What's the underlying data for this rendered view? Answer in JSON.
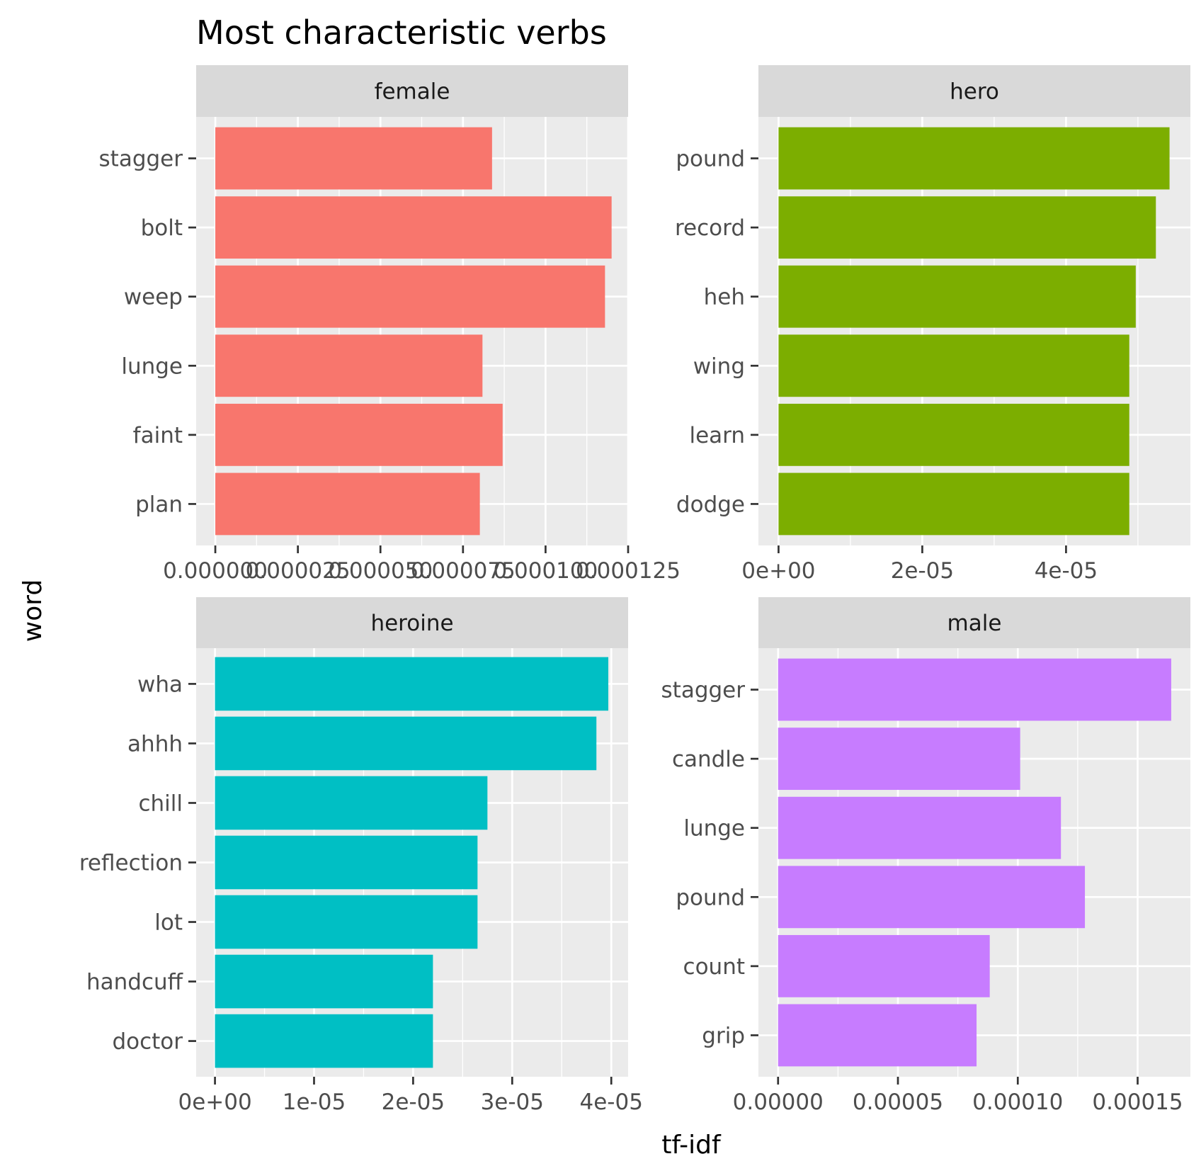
{
  "chart_data": {
    "type": "bar",
    "orientation": "horizontal",
    "facet_layout": "2x2",
    "title": "Most characteristic verbs",
    "xlabel": "tf-idf",
    "ylabel": "word",
    "grid": true,
    "legend": "none",
    "panels": [
      {
        "strip": "female",
        "color": "#F8766D",
        "categories": [
          "stagger",
          "bolt",
          "weep",
          "lunge",
          "faint",
          "plan"
        ],
        "values": [
          8.38e-05,
          0.00012,
          0.000118,
          8.09e-05,
          8.7e-05,
          8.01e-05
        ],
        "xlim": [
          -5.8e-06,
          0.000125
        ],
        "ticks": [
          0,
          2.5e-05,
          5e-05,
          7.5e-05,
          0.0001,
          0.000125
        ],
        "tick_labels": [
          "0.000000",
          "0.000025",
          "0.000050",
          "0.000075",
          "0.000100",
          "0.000125"
        ]
      },
      {
        "strip": "hero",
        "color": "#7CAE00",
        "categories": [
          "pound",
          "record",
          "heh",
          "wing",
          "learn",
          "dodge"
        ],
        "values": [
          5.44e-05,
          5.25e-05,
          4.97e-05,
          4.88e-05,
          4.88e-05,
          4.88e-05
        ],
        "xlim": [
          -2.8e-06,
          5.73e-05
        ],
        "ticks": [
          0,
          2e-05,
          4e-05
        ],
        "tick_labels": [
          "0e+00",
          "2e-05",
          "4e-05"
        ]
      },
      {
        "strip": "heroine",
        "color": "#00BFC4",
        "categories": [
          "wha",
          "ahhh",
          "chill",
          "reflection",
          "lot",
          "handcuff",
          "doctor"
        ],
        "values": [
          3.97e-05,
          3.85e-05,
          2.75e-05,
          2.65e-05,
          2.65e-05,
          2.2e-05,
          2.2e-05
        ],
        "xlim": [
          -1.9e-06,
          4.17e-05
        ],
        "ticks": [
          0,
          1e-05,
          2e-05,
          3e-05,
          4e-05
        ],
        "tick_labels": [
          "0e+00",
          "1e-05",
          "2e-05",
          "3e-05",
          "4e-05"
        ]
      },
      {
        "strip": "male",
        "color": "#C77CFF",
        "categories": [
          "stagger",
          "candle",
          "lunge",
          "pound",
          "count",
          "grip"
        ],
        "values": [
          0.000164,
          0.000101,
          0.000118,
          0.000128,
          8.83e-05,
          8.28e-05
        ],
        "xlim": [
          -8.2e-06,
          0.000172
        ],
        "ticks": [
          0,
          5e-05,
          0.0001,
          0.00015
        ],
        "tick_labels": [
          "0.00000",
          "0.00005",
          "0.00010",
          "0.00015"
        ]
      }
    ]
  }
}
